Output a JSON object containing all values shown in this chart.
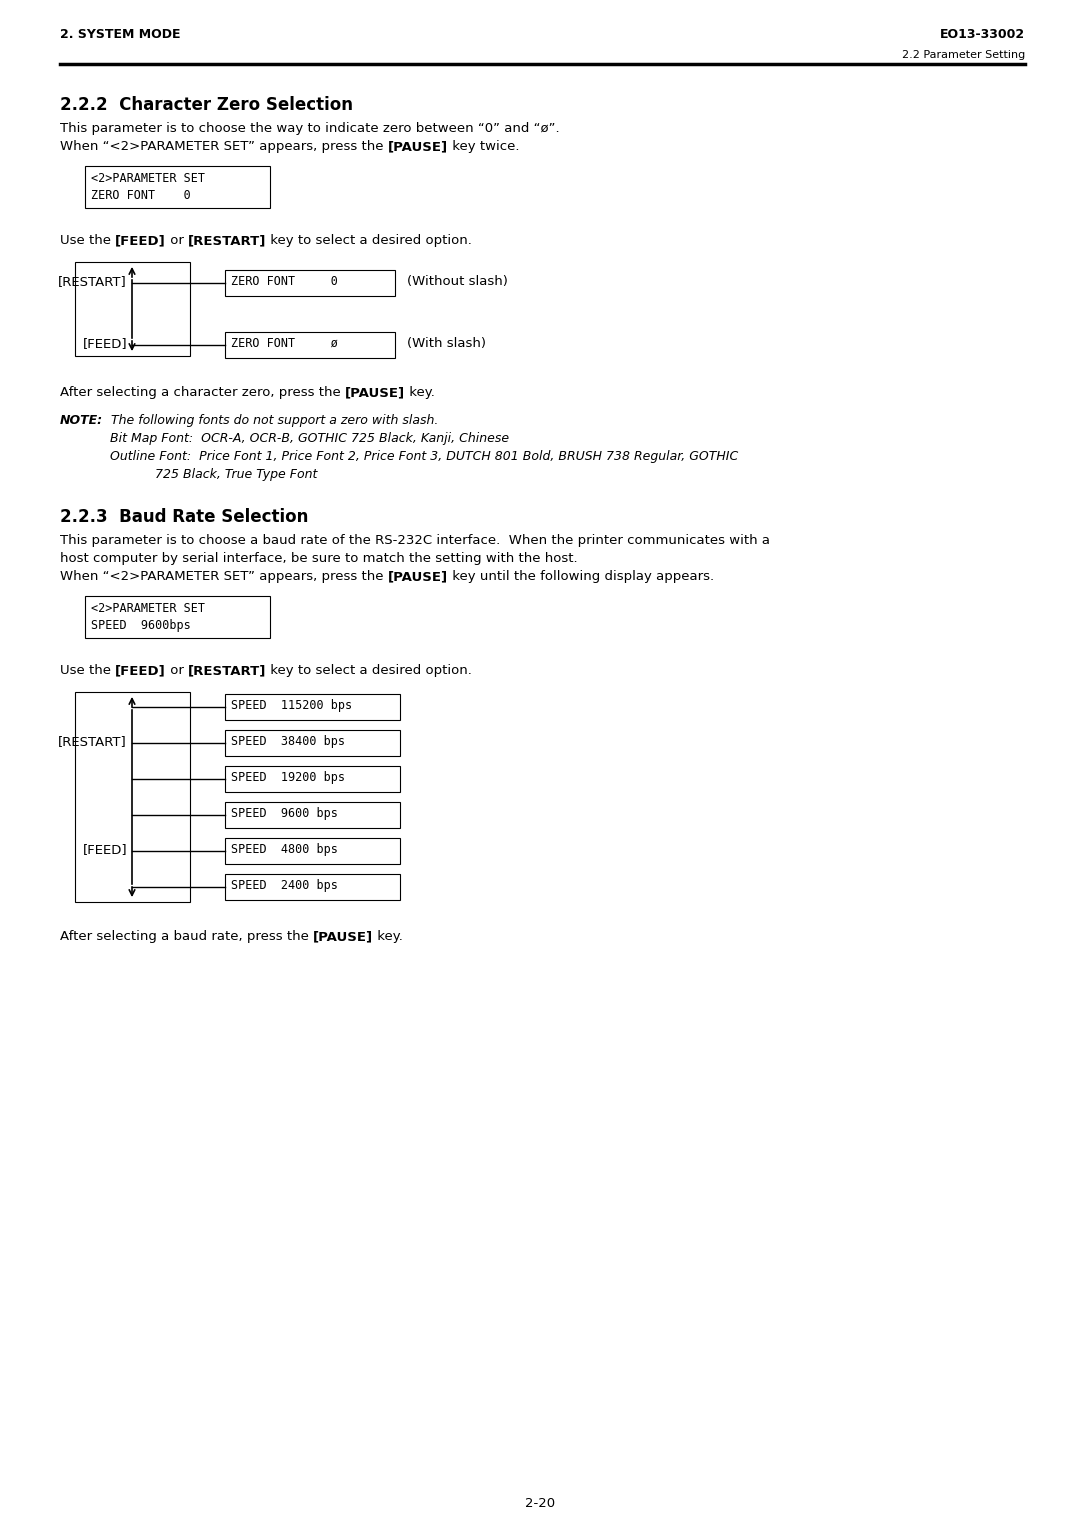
{
  "page_width": 10.8,
  "page_height": 15.28,
  "bg_color": "#ffffff",
  "header_left": "2. SYSTEM MODE",
  "header_right": "EO13-33002",
  "subheader_right": "2.2 Parameter Setting",
  "section1_title": "2.2.2  Character Zero Selection",
  "section1_para1a": "This parameter is to choose the way to indicate zero between “0” and “ø”.",
  "section1_para1b": "When “<2>PARAMETER SET” appears, press the ",
  "section1_para1b_bold": "[PAUSE]",
  "section1_para1b_end": " key twice.",
  "lcd1_line1": "<2>PARAMETER SET",
  "lcd1_line2": "ZERO FONT    0",
  "zero_opt1": "ZERO FONT     0",
  "zero_opt1_label": "(Without slash)",
  "zero_opt2": "ZERO FONT     ø",
  "zero_opt2_label": "(With slash)",
  "restart_label": "[RESTART]",
  "feed_label": "[FEED]",
  "after_zero": "After selecting a character zero, press the ",
  "after_zero_bold": "[PAUSE]",
  "after_zero_end": " key.",
  "note_bold": "NOTE:",
  "note_text1": "  The following fonts do not support a zero with slash.",
  "note_text2": "Bit Map Font:  OCR-A, OCR-B, GOTHIC 725 Black, Kanji, Chinese",
  "note_text3": "Outline Font:  Price Font 1, Price Font 2, Price Font 3, DUTCH 801 Bold, BRUSH 738 Regular, GOTHIC",
  "note_text4": "725 Black, True Type Font",
  "section2_title": "2.2.3  Baud Rate Selection",
  "section2_para1": "This parameter is to choose a baud rate of the RS-232C interface.  When the printer communicates with a",
  "section2_para2": "host computer by serial interface, be sure to match the setting with the host.",
  "section2_para3a": "When “<2>PARAMETER SET” appears, press the ",
  "section2_para3b": "[PAUSE]",
  "section2_para3c": " key until the following display appears.",
  "lcd2_line1": "<2>PARAMETER SET",
  "lcd2_line2": "SPEED  9600bps",
  "speed_options": [
    "SPEED  115200 bps",
    "SPEED  38400 bps",
    "SPEED  19200 bps",
    "SPEED  9600 bps",
    "SPEED  4800 bps",
    "SPEED  2400 bps"
  ],
  "after_baud": "After selecting a baud rate, press the ",
  "after_baud_bold": "[PAUSE]",
  "after_baud_end": " key.",
  "page_number": "2-20",
  "body_fontsize": 9.5,
  "mono_fontsize": 8.5,
  "section_fontsize": 12,
  "header_fontsize": 9,
  "note_fontsize": 9
}
